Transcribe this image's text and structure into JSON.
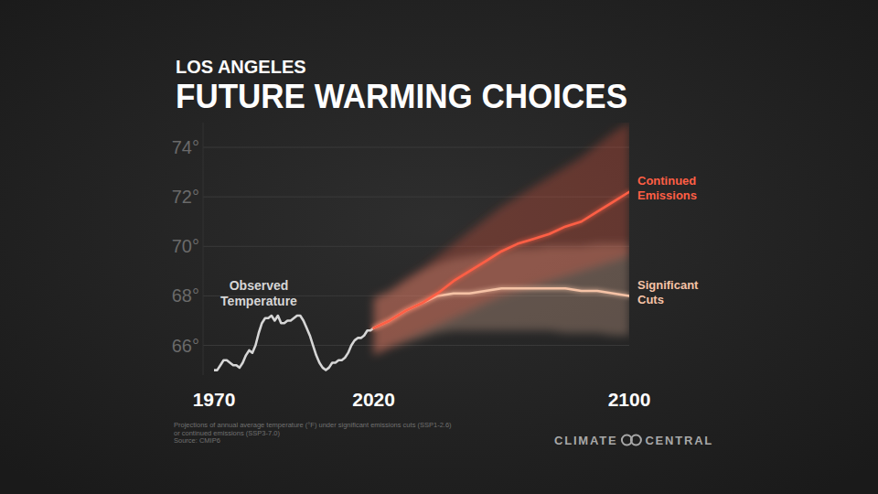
{
  "chart_data": {
    "type": "line",
    "subtitle": "LOS ANGELES",
    "title": "FUTURE WARMING CHOICES",
    "xlim": [
      1970,
      2100
    ],
    "xticks": [
      1970,
      2020,
      2100
    ],
    "ylim": [
      64.8,
      75
    ],
    "yticks": [
      {
        "value": 66,
        "label": "66°"
      },
      {
        "value": 68,
        "label": "68°"
      },
      {
        "value": 70,
        "label": "70°"
      },
      {
        "value": 72,
        "label": "72°"
      },
      {
        "value": 74,
        "label": "74°"
      }
    ],
    "grid": true,
    "series": [
      {
        "name": "Observed Temperature",
        "color": "#d6d6d6",
        "x": [
          1970,
          1971,
          1972,
          1973,
          1974,
          1975,
          1976,
          1977,
          1978,
          1979,
          1980,
          1981,
          1982,
          1983,
          1984,
          1985,
          1986,
          1987,
          1988,
          1989,
          1990,
          1991,
          1992,
          1993,
          1994,
          1995,
          1996,
          1997,
          1998,
          1999,
          2000,
          2001,
          2002,
          2003,
          2004,
          2005,
          2006,
          2007,
          2008,
          2009,
          2010,
          2011,
          2012,
          2013,
          2014,
          2015,
          2016,
          2017,
          2018,
          2019,
          2020
        ],
        "values": [
          65.0,
          65.0,
          65.2,
          65.4,
          65.4,
          65.3,
          65.2,
          65.2,
          65.1,
          65.3,
          65.6,
          65.8,
          65.7,
          66.0,
          66.5,
          66.9,
          67.1,
          67.1,
          67.2,
          67.0,
          67.2,
          66.9,
          66.9,
          67.0,
          67.0,
          67.1,
          67.2,
          67.2,
          67.0,
          66.7,
          66.4,
          66.0,
          65.6,
          65.3,
          65.1,
          65.0,
          65.1,
          65.3,
          65.3,
          65.4,
          65.4,
          65.5,
          65.7,
          66.0,
          66.2,
          66.3,
          66.3,
          66.4,
          66.6,
          66.6,
          66.7
        ]
      },
      {
        "name": "Significant Cuts",
        "color": "#f6c3a6",
        "x": [
          2020,
          2025,
          2030,
          2035,
          2040,
          2045,
          2050,
          2055,
          2060,
          2065,
          2070,
          2075,
          2080,
          2085,
          2090,
          2095,
          2100
        ],
        "values": [
          66.7,
          67.0,
          67.4,
          67.7,
          68.0,
          68.1,
          68.1,
          68.2,
          68.3,
          68.3,
          68.3,
          68.3,
          68.3,
          68.2,
          68.2,
          68.1,
          68.0
        ],
        "low": [
          65.6,
          65.9,
          66.1,
          66.3,
          66.5,
          66.6,
          66.6,
          66.6,
          66.6,
          66.6,
          66.6,
          66.6,
          66.5,
          66.5,
          66.5,
          66.4,
          66.4
        ],
        "high": [
          67.9,
          68.2,
          68.6,
          69.0,
          69.3,
          69.5,
          69.6,
          69.7,
          69.8,
          69.9,
          69.9,
          70.0,
          70.0,
          70.0,
          70.1,
          70.1,
          70.1
        ]
      },
      {
        "name": "Continued Emissions",
        "color": "#ff5f45",
        "x": [
          2020,
          2025,
          2030,
          2035,
          2040,
          2045,
          2050,
          2055,
          2060,
          2065,
          2070,
          2075,
          2080,
          2085,
          2090,
          2095,
          2100
        ],
        "values": [
          66.7,
          67.0,
          67.4,
          67.7,
          68.1,
          68.6,
          69.0,
          69.4,
          69.8,
          70.1,
          70.3,
          70.5,
          70.8,
          71.0,
          71.4,
          71.8,
          72.2
        ],
        "low": [
          65.6,
          65.9,
          66.2,
          66.5,
          66.8,
          67.1,
          67.4,
          67.7,
          68.0,
          68.2,
          68.4,
          68.6,
          68.8,
          69.0,
          69.2,
          69.4,
          69.6
        ],
        "high": [
          67.9,
          68.2,
          68.7,
          69.1,
          69.6,
          70.1,
          70.6,
          71.1,
          71.6,
          72.0,
          72.4,
          72.8,
          73.2,
          73.6,
          74.1,
          74.6,
          75.0
        ]
      }
    ],
    "footnote": [
      "Projections of annual average temperature (°F) under significant emissions cuts (SSP1-2.6)",
      "or continued emissions (SSP3-7.0)",
      "Source: CMIP6"
    ],
    "brand": "CLIMATE CENTRAL"
  }
}
